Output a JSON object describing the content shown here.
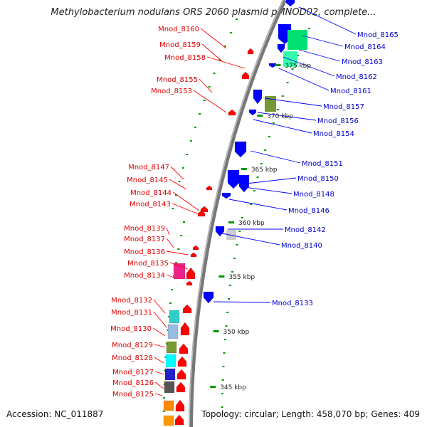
{
  "title": "Methylobacterium nodulans ORS 2060 plasmid pMNOD02, complete...",
  "footer": {
    "accession": "Accession: NC_011887",
    "topology": "Topology: circular; Length: 458,070 bp; Genes: 409"
  },
  "colors": {
    "forward": "#0000ff",
    "reverse": "#ff0000",
    "backbone": "#777777",
    "tick": "#009900"
  },
  "scale_labels": [
    "375 kbp",
    "370 kbp",
    "365 kbp",
    "360 kbp",
    "355 kbp",
    "350 kbp",
    "345 kbp"
  ],
  "forward_genes": [
    "Mnod_8165",
    "Mnod_8164",
    "Mnod_8163",
    "Mnod_8162",
    "Mnod_8161",
    "Mnod_8157",
    "Mnod_8156",
    "Mnod_8154",
    "Mnod_8151",
    "Mnod_8150",
    "Mnod_8148",
    "Mnod_8146",
    "Mnod_8142",
    "Mnod_8140",
    "Mnod_8133"
  ],
  "reverse_genes": [
    "Mnod_8160",
    "Mnod_8159",
    "Mnod_8158",
    "Mnod_8155",
    "Mnod_8153",
    "Mnod_8147",
    "Mnod_8145",
    "Mnod_8144",
    "Mnod_8143",
    "Mnod_8139",
    "Mnod_8137",
    "Mnod_8136",
    "Mnod_8135",
    "Mnod_8134",
    "Mnod_8132",
    "Mnod_8131",
    "Mnod_8130",
    "Mnod_8129",
    "Mnod_8128",
    "Mnod_8127",
    "Mnod_8126",
    "Mnod_8125"
  ]
}
